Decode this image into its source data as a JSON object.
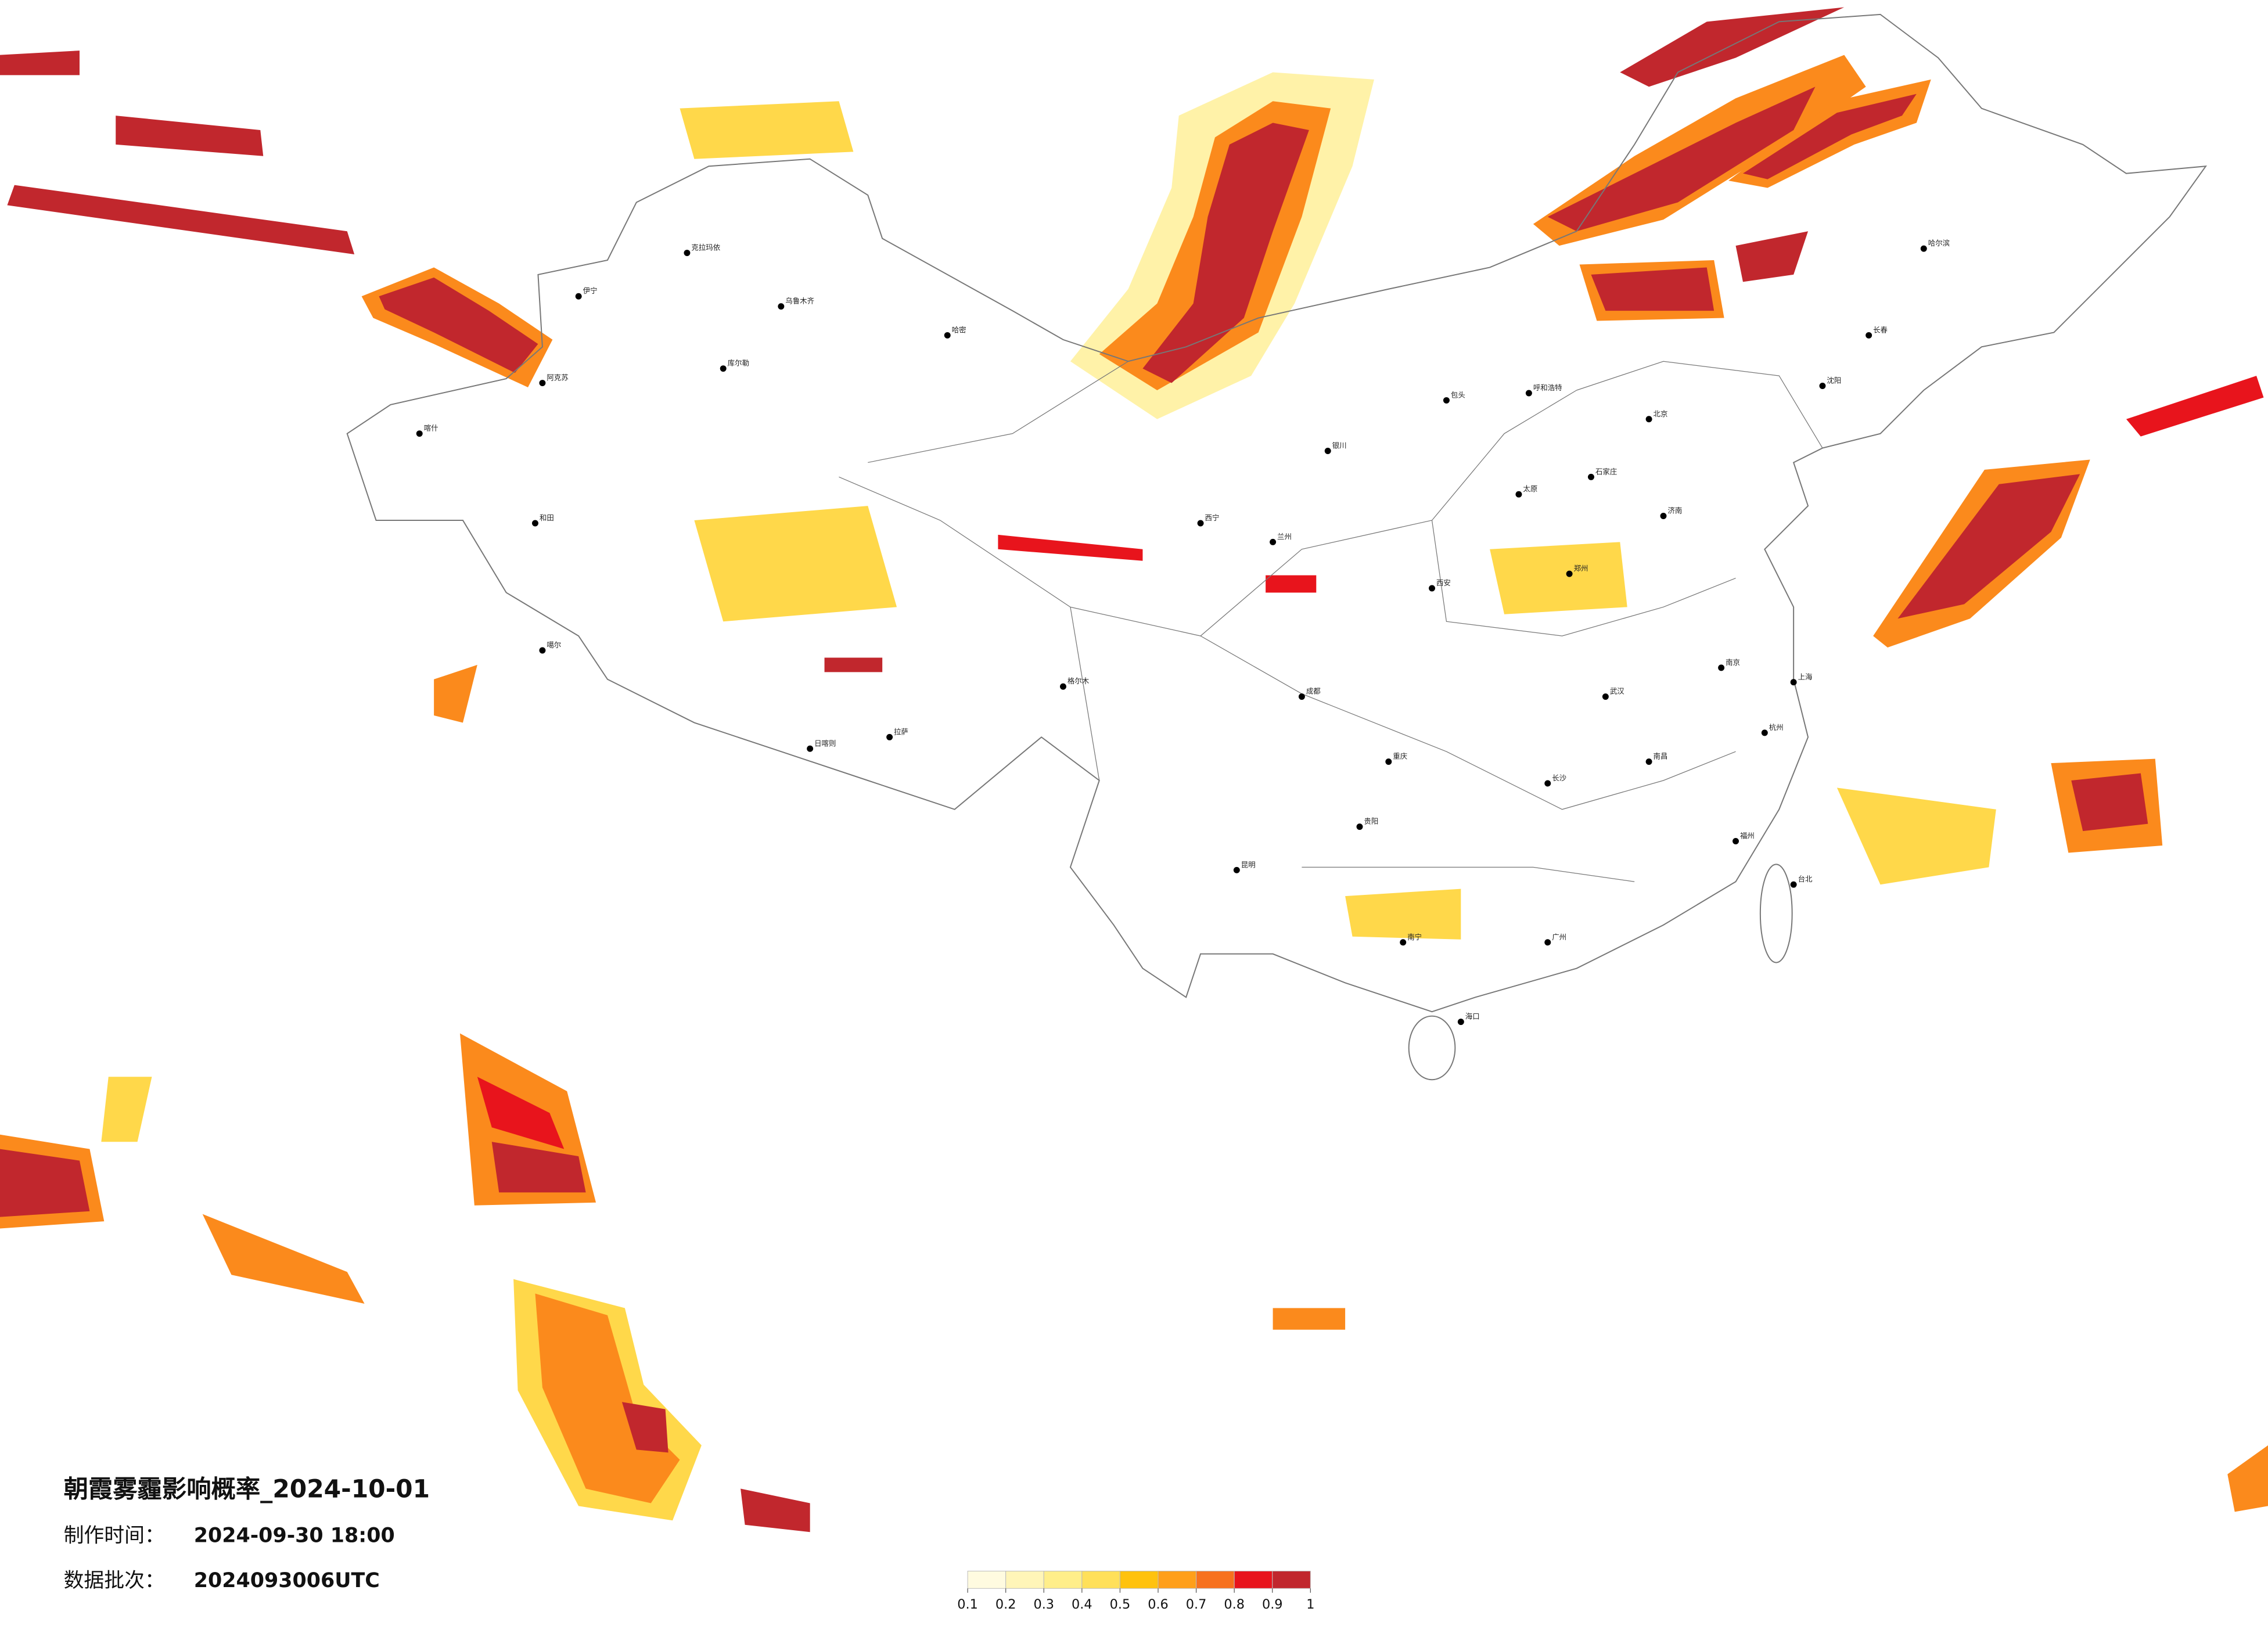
{
  "title": "朝霞雾霾影响概率_2024-10-01",
  "info": [
    {
      "label": "制作时间：",
      "value": "2024-09-30 18:00"
    },
    {
      "label": "数据批次：",
      "value": "2024093006UTC"
    }
  ],
  "legend": {
    "ticks": [
      0.1,
      0.2,
      0.3,
      0.4,
      0.5,
      0.6,
      0.7,
      0.8,
      0.9,
      1
    ],
    "colors": [
      "#fffbe0",
      "#fff5b8",
      "#ffee8a",
      "#ffe05a",
      "#ffc20e",
      "#ff9f1a",
      "#f7711e",
      "#e8141c",
      "#c1272d"
    ]
  },
  "cities": [
    "克拉玛依",
    "伊宁",
    "乌鲁木齐",
    "库尔勒",
    "哈密",
    "阿克苏",
    "喀什",
    "和田",
    "噶尔",
    "日喀则",
    "拉萨",
    "格尔木",
    "西宁",
    "兰州",
    "银川",
    "包头",
    "呼和浩特",
    "北京",
    "石家庄",
    "太原",
    "济南",
    "郑州",
    "西安",
    "成都",
    "重庆",
    "贵阳",
    "昆明",
    "南宁",
    "广州",
    "长沙",
    "武汉",
    "南昌",
    "南京",
    "上海",
    "杭州",
    "福州",
    "台北",
    "海口",
    "沈阳",
    "长春",
    "哈尔滨"
  ]
}
